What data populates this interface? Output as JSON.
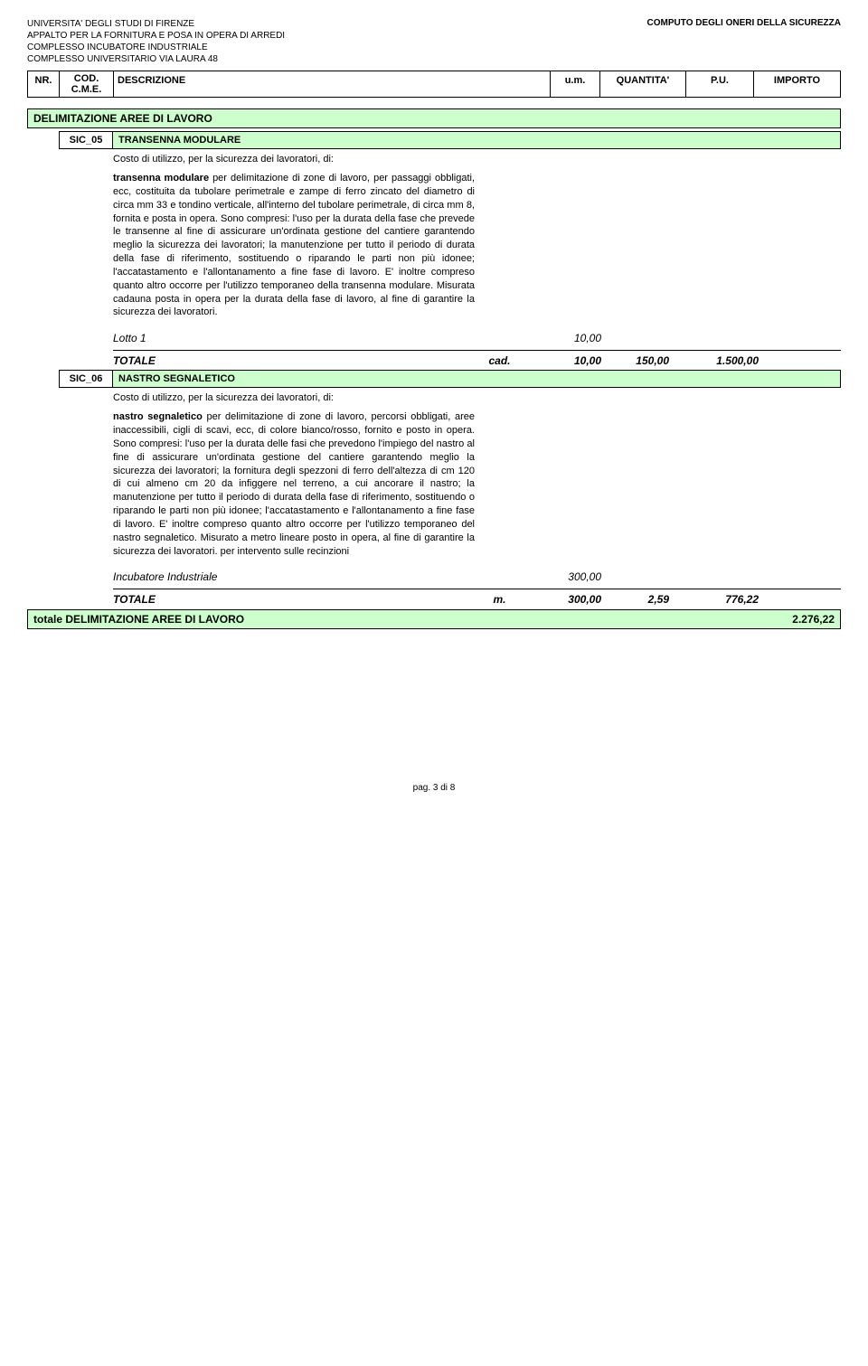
{
  "header": {
    "line1": "UNIVERSITA' DEGLI STUDI DI FIRENZE",
    "line2": "APPALTO PER LA FORNITURA E POSA IN OPERA DI ARREDI",
    "line3": "COMPLESSO INCUBATORE INDUSTRIALE",
    "line4": "COMPLESSO UNIVERSITARIO VIA LAURA 48",
    "right": "COMPUTO DEGLI ONERI DELLA SICUREZZA"
  },
  "tableHeader": {
    "nr": "NR.",
    "cod": "COD. C.M.E.",
    "desc": "DESCRIZIONE",
    "um": "u.m.",
    "qty": "QUANTITA'",
    "pu": "P.U.",
    "imp": "IMPORTO"
  },
  "section": {
    "title": "DELIMITAZIONE AREE DI LAVORO"
  },
  "item1": {
    "code": "SIC_05",
    "title": "TRANSENNA MODULARE",
    "intro": "Costo di utilizzo, per la sicurezza dei lavoratori, di:",
    "boldStart": "transenna modulare",
    "body": " per delimitazione di zone di lavoro, per passaggi obbligati, ecc, costituita da tubolare perimetrale e zampe di ferro zincato del diametro di circa mm 33 e tondino verticale, all'interno del tubolare perimetrale, di circa mm 8, fornita e posta in opera. Sono compresi: l'uso per la durata della fase che prevede le transenne al fine di assicurare un'ordinata gestione del cantiere garantendo meglio la sicurezza dei lavoratori; la manutenzione per tutto il periodo di durata della fase di riferimento, sostituendo o riparando le parti non più idonee; l'accatastamento e l'allontanamento a fine fase di lavoro. E' inoltre compreso quanto altro occorre per l'utilizzo temporaneo della transenna modulare. Misurata cadauna posta in opera per la durata della fase di lavoro, al fine di garantire la sicurezza dei lavoratori.",
    "lotto": {
      "label": "Lotto 1",
      "qty": "10,00"
    },
    "totale": {
      "label": "TOTALE",
      "um": "cad.",
      "qty": "10,00",
      "pu": "150,00",
      "imp": "1.500,00"
    }
  },
  "item2": {
    "code": "SIC_06",
    "title": "NASTRO SEGNALETICO",
    "intro": "Costo di utilizzo, per la sicurezza dei lavoratori, di:",
    "boldStart": "nastro segnaletico",
    "body": " per delimitazione di zone di lavoro, percorsi obbligati, aree inaccessibili, cigli di scavi, ecc, di colore bianco/rosso, fornito e posto in opera. Sono compresi: l'uso per la durata delle fasi che prevedono l'impiego del nastro al fine di assicurare un'ordinata gestione del cantiere garantendo meglio la sicurezza dei lavoratori; la fornitura degli spezzoni di ferro dell'altezza di cm 120 di cui almeno cm 20 da infiggere nel terreno, a cui ancorare il nastro; la manutenzione per tutto il periodo di durata della fase di riferimento, sostituendo o riparando le parti non più idonee; l'accatastamento e l'allontanamento a fine fase di lavoro. E' inoltre compreso quanto altro occorre per l'utilizzo temporaneo del nastro segnaletico. Misurato a metro lineare posto in opera, al fine di garantire la sicurezza dei lavoratori. per intervento sulle recinzioni",
    "lotto": {
      "label": "Incubatore Industriale",
      "qty": "300,00"
    },
    "totale": {
      "label": "TOTALE",
      "um": "m.",
      "qty": "300,00",
      "pu": "2,59",
      "imp": "776,22"
    }
  },
  "grandTotal": {
    "label": "totale DELIMITAZIONE AREE DI LAVORO",
    "value": "2.276,22"
  },
  "footer": "pag. 3 di 8",
  "colors": {
    "sectionBg": "#ccffcc",
    "border": "#000000",
    "text": "#000000",
    "pageBg": "#ffffff"
  }
}
